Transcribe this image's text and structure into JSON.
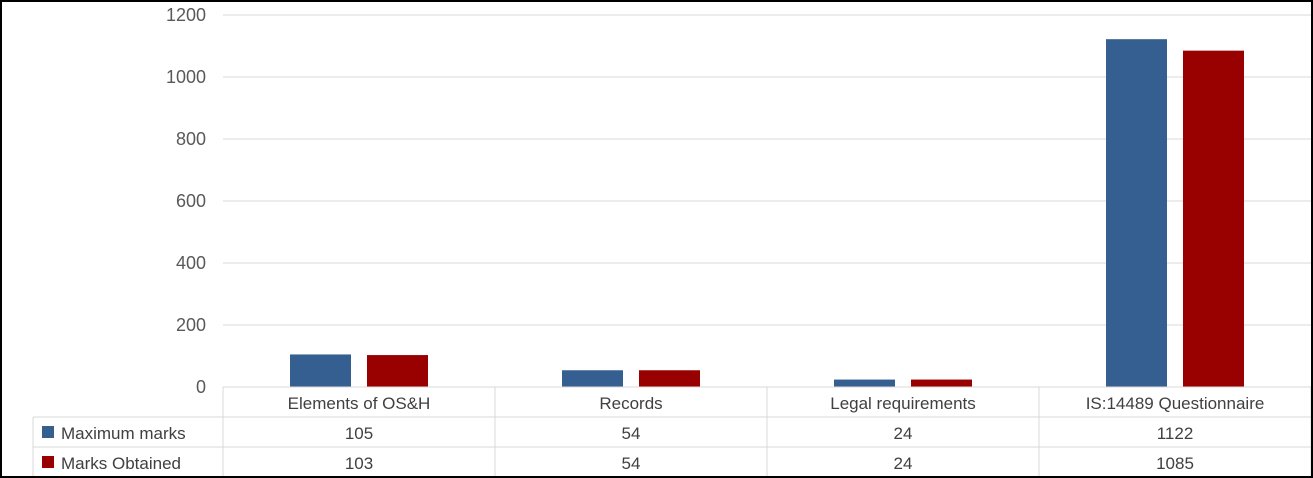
{
  "chart_data": {
    "type": "bar",
    "title": "",
    "xlabel": "",
    "ylabel": "",
    "categories": [
      "Elements of OS&H",
      "Records",
      "Legal requirements",
      "IS:14489 Questionnaire"
    ],
    "series": [
      {
        "name": "Maximum marks",
        "values": [
          105,
          54,
          24,
          1122
        ],
        "color": "#365f91"
      },
      {
        "name": "Marks Obtained",
        "values": [
          103,
          54,
          24,
          1085
        ],
        "color": "#990000"
      }
    ],
    "ylim": [
      0,
      1200
    ],
    "yticks": [
      0,
      200,
      400,
      600,
      800,
      1000,
      1200
    ],
    "grid": true,
    "legend": "data-table-left",
    "data_table": {
      "rows": [
        {
          "series": "Maximum marks",
          "cells": [
            "105",
            "54",
            "24",
            "1122"
          ]
        },
        {
          "series": "Marks Obtained",
          "cells": [
            "103",
            "54",
            "24",
            "1085"
          ]
        }
      ]
    }
  }
}
